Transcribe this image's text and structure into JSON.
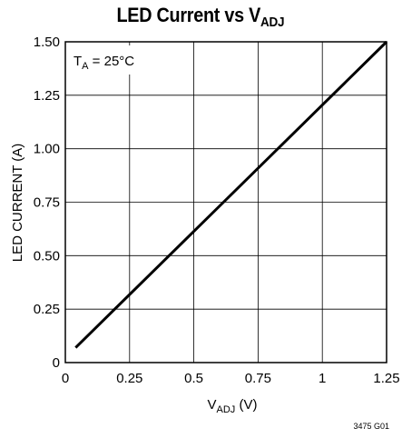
{
  "chart_data": {
    "type": "line",
    "title": "LED Current vs V",
    "title_sub": "ADJ",
    "xlabel": "V",
    "xlabel_sub": "ADJ",
    "xlabel_suffix": " (V)",
    "ylabel": "LED CURRENT (A)",
    "annotation": "T",
    "annotation_sub": "A",
    "annotation_suffix": " = 25°C",
    "xlim": [
      0,
      1.25
    ],
    "ylim": [
      0,
      1.5
    ],
    "x_ticks": [
      "0",
      "0.25",
      "0.5",
      "0.75",
      "1",
      "1.25"
    ],
    "y_ticks": [
      "0",
      "0.25",
      "0.50",
      "0.75",
      "1.00",
      "1.25",
      "1.50"
    ],
    "grid": true,
    "series": [
      {
        "x": [
          0.04,
          1.25
        ],
        "y": [
          0.07,
          1.5
        ]
      }
    ],
    "line_color": "#000000"
  },
  "figure_code": "3475 G01"
}
